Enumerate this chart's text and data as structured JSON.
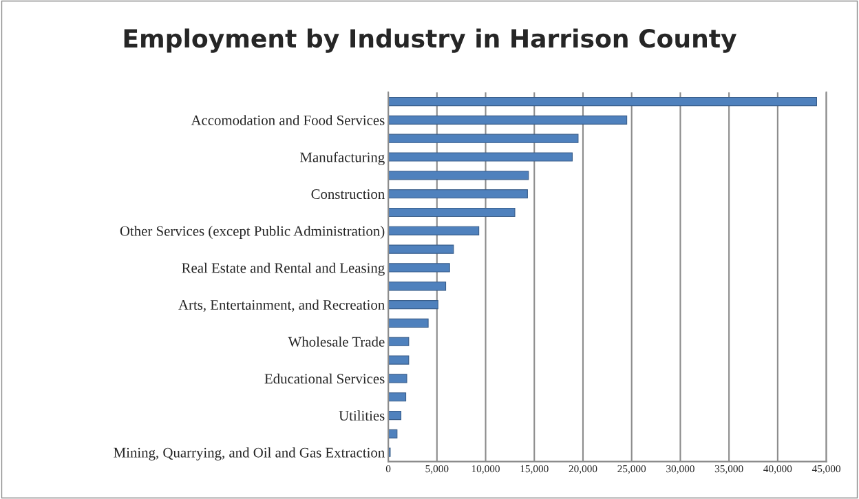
{
  "chart_data": {
    "type": "bar",
    "orientation": "horizontal",
    "title": "Employment by Industry in Harrison County",
    "categories": [
      null,
      "Accomodation and Food Services",
      null,
      "Manufacturing",
      null,
      "Construction",
      null,
      "Other Services (except Public Administration)",
      null,
      "Real Estate and Rental and Leasing",
      null,
      "Arts, Entertainment, and Recreation",
      null,
      "Wholesale Trade",
      null,
      "Educational Services",
      null,
      "Utilities",
      null,
      "Mining, Quarrying, and Oil and Gas Extraction"
    ],
    "values": [
      44000,
      24500,
      19500,
      18900,
      14400,
      14300,
      13000,
      9300,
      6700,
      6300,
      5900,
      5100,
      4100,
      2100,
      2100,
      1900,
      1800,
      1300,
      900,
      200
    ],
    "color": "#4f81bd",
    "xlim": [
      0,
      45000
    ],
    "xticks": [
      {
        "value": 0,
        "label": "0"
      },
      {
        "value": 5000,
        "label": "5,000"
      },
      {
        "value": 10000,
        "label": "10,000"
      },
      {
        "value": 15000,
        "label": "15,000"
      },
      {
        "value": 20000,
        "label": "20,000"
      },
      {
        "value": 25000,
        "label": "25,000"
      },
      {
        "value": 30000,
        "label": "30,000"
      },
      {
        "value": 35000,
        "label": "35,000"
      },
      {
        "value": 40000,
        "label": "40,000"
      },
      {
        "value": 45000,
        "label": "45,000"
      }
    ],
    "grid": "x"
  }
}
